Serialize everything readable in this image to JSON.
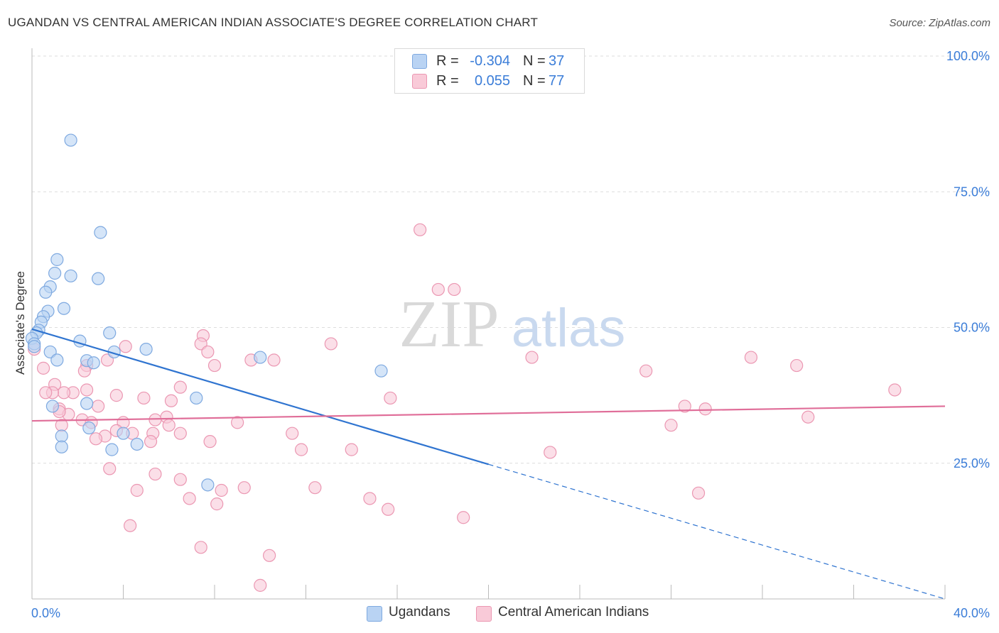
{
  "title": "UGANDAN VS CENTRAL AMERICAN INDIAN ASSOCIATE'S DEGREE CORRELATION CHART",
  "source": "Source: ZipAtlas.com",
  "watermark": {
    "zip": "ZIP",
    "atlas": "atlas"
  },
  "legend": {
    "r_label": "R =",
    "n_label": "N =",
    "rows": [
      {
        "name": "Ugandans",
        "r": "-0.304",
        "n": "37"
      },
      {
        "name": "Central American Indians",
        "r": "0.055",
        "n": "77"
      }
    ]
  },
  "colors": {
    "blue_fill": "#b9d3f3",
    "blue_stroke": "#7ea9e0",
    "blue_line": "#2f74d0",
    "pink_fill": "#f9cad8",
    "pink_stroke": "#eb97b2",
    "pink_line": "#e06e99",
    "axis_label": "#3b7dd8",
    "grid": "#dddddd"
  },
  "chart_data": {
    "type": "scatter",
    "title": "UGANDAN VS CENTRAL AMERICAN INDIAN ASSOCIATE'S DEGREE CORRELATION CHART",
    "xlabel": "",
    "ylabel": "Associate's Degree",
    "xlim": [
      0,
      40
    ],
    "ylim": [
      0,
      100
    ],
    "x_tick_labels": [
      "0.0%",
      "40.0%"
    ],
    "y_tick_labels": [
      "25.0%",
      "50.0%",
      "75.0%",
      "100.0%"
    ],
    "y_ticks": [
      25,
      50,
      75,
      100
    ],
    "grid": true,
    "legend_position": "top-center",
    "series": [
      {
        "name": "Ugandans",
        "color": "#7ea9e0",
        "points": [
          [
            1.7,
            84.5
          ],
          [
            3.0,
            67.5
          ],
          [
            1.1,
            62.5
          ],
          [
            1.0,
            60.0
          ],
          [
            1.7,
            59.5
          ],
          [
            2.9,
            59.0
          ],
          [
            0.8,
            57.5
          ],
          [
            0.6,
            56.5
          ],
          [
            1.4,
            53.5
          ],
          [
            0.7,
            53.0
          ],
          [
            0.5,
            52.0
          ],
          [
            0.4,
            51.0
          ],
          [
            0.3,
            49.5
          ],
          [
            0.2,
            49.0
          ],
          [
            3.4,
            49.0
          ],
          [
            0.0,
            48.0
          ],
          [
            0.1,
            47.0
          ],
          [
            2.1,
            47.5
          ],
          [
            0.8,
            45.5
          ],
          [
            3.6,
            45.5
          ],
          [
            5.0,
            46.0
          ],
          [
            10.0,
            44.5
          ],
          [
            1.1,
            44.0
          ],
          [
            2.4,
            43.9
          ],
          [
            2.7,
            43.5
          ],
          [
            15.3,
            42.0
          ],
          [
            7.2,
            37.0
          ],
          [
            2.4,
            36.0
          ],
          [
            0.9,
            35.5
          ],
          [
            2.5,
            31.5
          ],
          [
            4.0,
            30.5
          ],
          [
            1.3,
            30.0
          ],
          [
            4.6,
            28.5
          ],
          [
            1.3,
            28.0
          ],
          [
            3.5,
            27.5
          ],
          [
            7.7,
            21.0
          ],
          [
            0.1,
            46.5
          ]
        ],
        "trend": {
          "x": [
            0,
            20
          ],
          "y": [
            49.7,
            24.8
          ]
        },
        "trend_extension": {
          "x": [
            20,
            40
          ],
          "y": [
            24.8,
            0.0
          ]
        }
      },
      {
        "name": "Central American Indians",
        "color": "#eb97b2",
        "points": [
          [
            17.0,
            68.0
          ],
          [
            17.8,
            57.0
          ],
          [
            18.5,
            57.0
          ],
          [
            7.5,
            48.5
          ],
          [
            4.1,
            46.5
          ],
          [
            7.4,
            47.0
          ],
          [
            13.1,
            47.0
          ],
          [
            7.7,
            45.5
          ],
          [
            3.3,
            44.0
          ],
          [
            9.6,
            44.0
          ],
          [
            10.6,
            44.0
          ],
          [
            21.9,
            44.5
          ],
          [
            31.5,
            44.5
          ],
          [
            8.0,
            43.0
          ],
          [
            33.5,
            43.0
          ],
          [
            2.4,
            43.0
          ],
          [
            26.9,
            42.0
          ],
          [
            2.3,
            42.0
          ],
          [
            0.5,
            42.5
          ],
          [
            1.0,
            39.5
          ],
          [
            6.5,
            39.0
          ],
          [
            2.4,
            38.5
          ],
          [
            1.8,
            38.0
          ],
          [
            1.4,
            38.0
          ],
          [
            0.9,
            38.0
          ],
          [
            0.6,
            38.0
          ],
          [
            37.8,
            38.5
          ],
          [
            3.7,
            37.5
          ],
          [
            4.9,
            37.0
          ],
          [
            6.1,
            36.5
          ],
          [
            15.7,
            37.0
          ],
          [
            2.9,
            35.5
          ],
          [
            1.2,
            35.0
          ],
          [
            28.6,
            35.5
          ],
          [
            29.5,
            35.0
          ],
          [
            1.6,
            34.0
          ],
          [
            5.4,
            33.0
          ],
          [
            5.9,
            33.5
          ],
          [
            34.0,
            33.5
          ],
          [
            2.2,
            33.0
          ],
          [
            2.6,
            32.5
          ],
          [
            4.0,
            32.5
          ],
          [
            9.0,
            32.5
          ],
          [
            6.0,
            32.0
          ],
          [
            1.3,
            32.0
          ],
          [
            28.0,
            32.0
          ],
          [
            3.7,
            31.0
          ],
          [
            6.5,
            30.5
          ],
          [
            11.4,
            30.5
          ],
          [
            5.3,
            30.5
          ],
          [
            4.4,
            30.5
          ],
          [
            3.2,
            30.0
          ],
          [
            2.8,
            29.5
          ],
          [
            5.2,
            29.0
          ],
          [
            7.8,
            29.0
          ],
          [
            14.0,
            27.5
          ],
          [
            11.8,
            27.5
          ],
          [
            22.7,
            27.0
          ],
          [
            3.4,
            24.0
          ],
          [
            5.4,
            23.0
          ],
          [
            6.5,
            22.0
          ],
          [
            9.3,
            20.5
          ],
          [
            12.4,
            20.5
          ],
          [
            8.3,
            20.0
          ],
          [
            4.6,
            20.0
          ],
          [
            29.2,
            19.5
          ],
          [
            6.9,
            18.5
          ],
          [
            14.8,
            18.5
          ],
          [
            8.1,
            17.5
          ],
          [
            15.6,
            16.5
          ],
          [
            18.9,
            15.0
          ],
          [
            4.3,
            13.5
          ],
          [
            7.4,
            9.5
          ],
          [
            10.4,
            8.0
          ],
          [
            10.0,
            2.5
          ],
          [
            0.1,
            46.0
          ],
          [
            1.2,
            34.5
          ]
        ],
        "trend": {
          "x": [
            0,
            40
          ],
          "y": [
            32.8,
            35.5
          ]
        }
      }
    ]
  }
}
